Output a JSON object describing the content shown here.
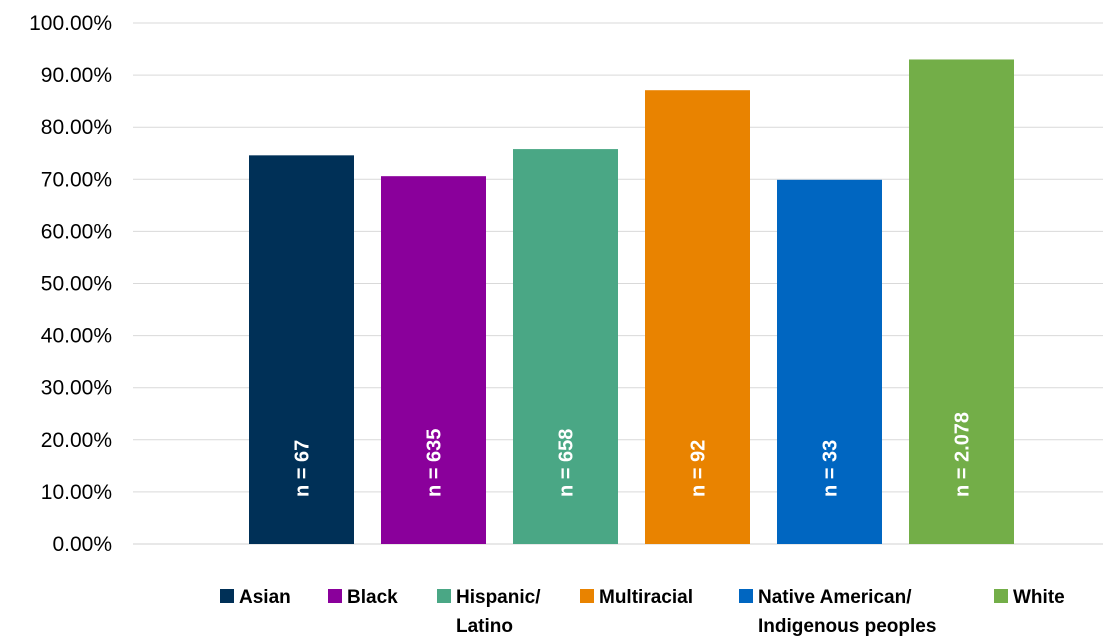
{
  "chart_data": {
    "type": "bar",
    "title": "",
    "xlabel": "",
    "ylabel": "",
    "ylim": [
      0,
      1
    ],
    "y_ticks": [
      "0.00%",
      "10.00%",
      "20.00%",
      "30.00%",
      "40.00%",
      "50.00%",
      "60.00%",
      "70.00%",
      "80.00%",
      "90.00%",
      "100.00%"
    ],
    "grid": true,
    "legend_position": "bottom",
    "categories": [
      "Asian",
      "Black",
      "Hispanic/ Latino",
      "Multiracial",
      "Native American/ Indigenous peoples",
      "White"
    ],
    "values": [
      0.746,
      0.706,
      0.758,
      0.871,
      0.699,
      0.93
    ],
    "bar_labels": [
      "n = 67",
      "n = 635",
      "n = 658",
      "n = 92",
      "n = 33",
      "n = 2.078"
    ],
    "colors": [
      "#003057",
      "#8a009b",
      "#4aa785",
      "#e98300",
      "#0066c1",
      "#73ae48"
    ],
    "legend": [
      {
        "lines": [
          "Asian"
        ]
      },
      {
        "lines": [
          "Black"
        ]
      },
      {
        "lines": [
          "Hispanic/",
          "Latino"
        ]
      },
      {
        "lines": [
          "Multiracial"
        ]
      },
      {
        "lines": [
          "Native American/",
          "Indigenous peoples"
        ]
      },
      {
        "lines": [
          "White"
        ]
      }
    ]
  }
}
